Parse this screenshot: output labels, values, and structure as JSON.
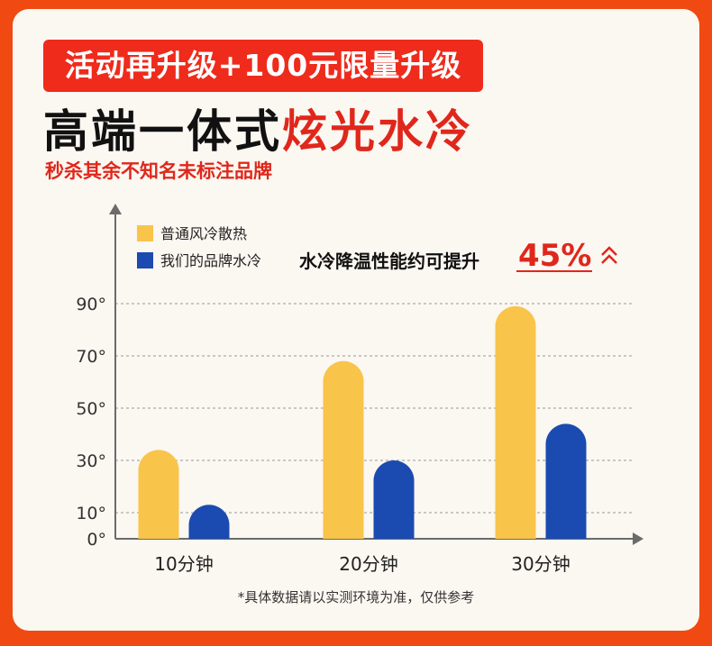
{
  "promo_banner": "活动再升级+100元限量升级",
  "headline": {
    "black_part": "高端一体式",
    "red_part": "炫光水冷"
  },
  "subline": "秒杀其余不知名未标注品牌",
  "callout": {
    "text": "水冷降温性能约可提升",
    "value": "45%"
  },
  "footnote": "*具体数据请以实测环境为准，仅供参考",
  "colors": {
    "accent_red": "#e0271b",
    "series_yellow": "#f9c44a",
    "series_blue": "#1b4bb0"
  },
  "chart_data": {
    "type": "bar",
    "categories": [
      "10分钟",
      "20分钟",
      "30分钟"
    ],
    "series": [
      {
        "name": "普通风冷散热",
        "values": [
          34,
          68,
          89
        ],
        "color": "#f9c44a"
      },
      {
        "name": "我们的品牌水冷",
        "values": [
          13,
          30,
          44
        ],
        "color": "#1b4bb0"
      }
    ],
    "y_ticks": [
      "0°",
      "10°",
      "30°",
      "50°",
      "70°",
      "90°"
    ],
    "y_tick_values": [
      0,
      10,
      30,
      50,
      70,
      90
    ],
    "ylim": [
      0,
      100
    ],
    "legend_position": "top-left",
    "grid": true
  }
}
